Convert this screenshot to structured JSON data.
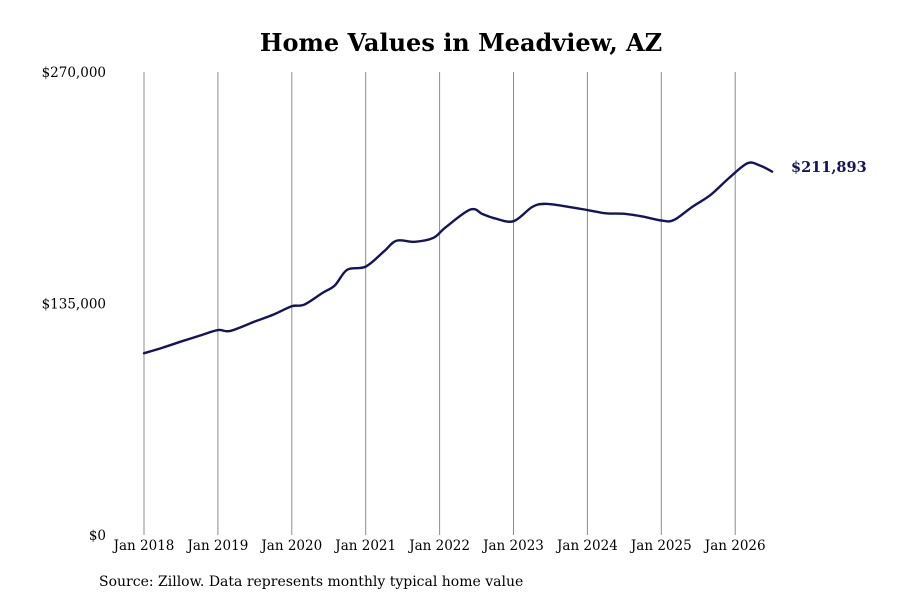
{
  "chart_data": {
    "type": "line",
    "title": "Home Values in Meadview, AZ",
    "xlabel": "",
    "ylabel": "",
    "ylim": [
      0,
      270000
    ],
    "y_ticks": [
      {
        "value": 0,
        "label": "$0"
      },
      {
        "value": 135000,
        "label": "$135,000"
      },
      {
        "value": 270000,
        "label": "$270,000"
      }
    ],
    "x_ticks": [
      {
        "value": "2018-01",
        "label": "Jan 2018"
      },
      {
        "value": "2019-01",
        "label": "Jan 2019"
      },
      {
        "value": "2020-01",
        "label": "Jan 2020"
      },
      {
        "value": "2021-01",
        "label": "Jan 2021"
      },
      {
        "value": "2022-01",
        "label": "Jan 2022"
      },
      {
        "value": "2023-01",
        "label": "Jan 2023"
      },
      {
        "value": "2024-01",
        "label": "Jan 2024"
      },
      {
        "value": "2025-01",
        "label": "Jan 2025"
      },
      {
        "value": "2026-01",
        "label": "Jan 2026"
      }
    ],
    "grid": "vertical",
    "series": [
      {
        "color": "#14145c",
        "end_label": "$211,893",
        "x": [
          "2018-01",
          "2018-04",
          "2018-07",
          "2018-10",
          "2019-01",
          "2019-03",
          "2019-07",
          "2019-10",
          "2020-01",
          "2020-03",
          "2020-06",
          "2020-08",
          "2020-10",
          "2021-01",
          "2021-04",
          "2021-06",
          "2021-09",
          "2021-12",
          "2022-02",
          "2022-06",
          "2022-08",
          "2022-10",
          "2023-01",
          "2023-04",
          "2023-06",
          "2023-09",
          "2024-01",
          "2024-04",
          "2024-07",
          "2024-10",
          "2025-01",
          "2025-03",
          "2025-06",
          "2025-09",
          "2025-12",
          "2026-03",
          "2026-05",
          "2026-07"
        ],
        "values": [
          106000,
          109200,
          112800,
          116200,
          119500,
          119000,
          124500,
          128500,
          133400,
          134300,
          141200,
          145600,
          154700,
          156500,
          165500,
          171600,
          171000,
          173300,
          179500,
          189800,
          187100,
          184600,
          183000,
          191200,
          193100,
          191900,
          189500,
          187600,
          187300,
          185700,
          183400,
          183600,
          191300,
          198300,
          208200,
          216800,
          215500,
          211893
        ]
      }
    ]
  },
  "source_note": "Source: Zillow. Data represents monthly typical home value"
}
